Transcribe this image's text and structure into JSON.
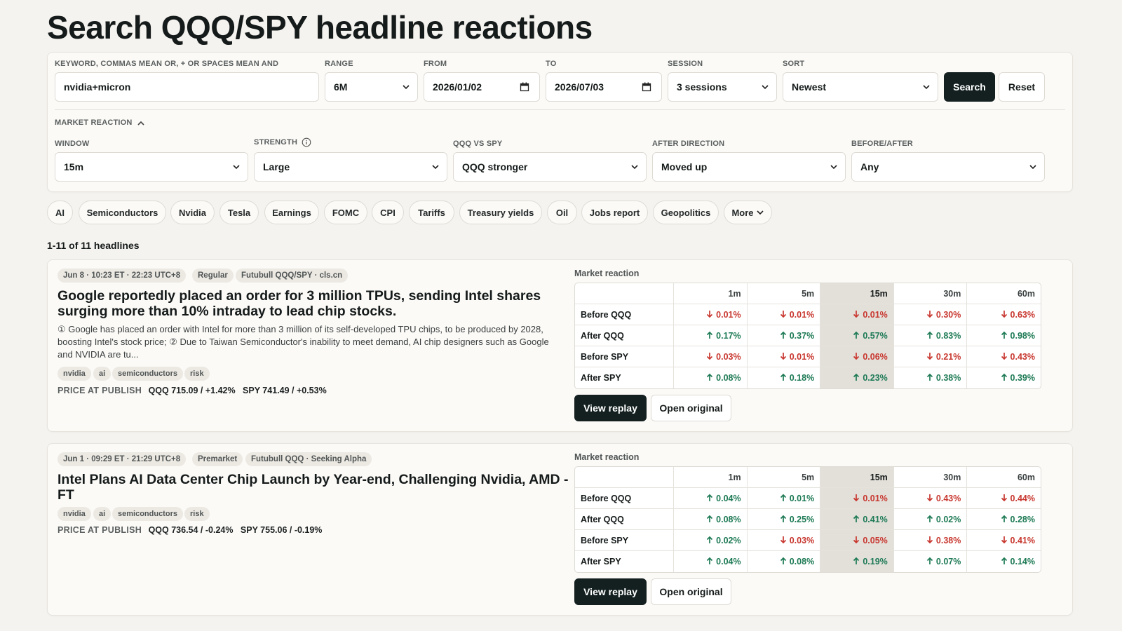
{
  "title": "Search QQQ/SPY headline reactions",
  "search": {
    "keyword_label": "Keyword, commas mean OR, + or spaces mean AND",
    "keyword_value": "nvidia+micron",
    "range_label": "Range",
    "range_value": "6M",
    "from_label": "From",
    "from_value": "2026/01/02",
    "to_label": "To",
    "to_value": "2026/07/03",
    "session_label": "Session",
    "session_value": "3 sessions",
    "sort_label": "Sort",
    "sort_value": "Newest",
    "search_button": "Search",
    "reset_button": "Reset"
  },
  "market_reaction": {
    "toggle_label": "Market reaction",
    "window_label": "Window",
    "window_value": "15m",
    "strength_label": "Strength",
    "strength_value": "Large",
    "qqq_vs_spy_label": "QQQ vs SPY",
    "qqq_vs_spy_value": "QQQ stronger",
    "after_direction_label": "After direction",
    "after_direction_value": "Moved up",
    "before_after_label": "Before/After",
    "before_after_value": "Any"
  },
  "chips": [
    "AI",
    "Semiconductors",
    "Nvidia",
    "Tesla",
    "Earnings",
    "FOMC",
    "CPI",
    "Tariffs",
    "Treasury yields",
    "Oil",
    "Jobs report",
    "Geopolitics"
  ],
  "chip_more": "More",
  "result_count": "1-11 of 11 headlines",
  "table_columns": [
    "",
    "1m",
    "5m",
    "15m",
    "30m",
    "60m"
  ],
  "results": [
    {
      "time": "Jun 8 · 10:23 ET · 22:23 UTC+8",
      "session": "Regular",
      "source": "Futubull QQQ/SPY · cls.cn",
      "headline": "Google reportedly placed an order for 3 million TPUs, sending Intel shares surging more than 10% intraday to lead chip stocks.",
      "summary": "① Google has placed an order with Intel for more than 3 million of its self-developed TPU chips, to be produced by 2028, boosting Intel's stock price; ② Due to Taiwan Semiconductor's inability to meet demand, AI chip designers such as Google and NVIDIA are tu...",
      "tags": [
        "nvidia",
        "ai",
        "semiconductors",
        "risk"
      ],
      "price_label": "PRICE AT PUBLISH",
      "price_qqq": "QQQ 715.09 / +1.42%",
      "price_spy": "SPY 741.49 / +0.53%",
      "reaction_label": "Market reaction",
      "rows": [
        {
          "label": "Before QQQ",
          "cells": [
            {
              "v": "0.01%",
              "d": "down"
            },
            {
              "v": "0.01%",
              "d": "down"
            },
            {
              "v": "0.01%",
              "d": "down"
            },
            {
              "v": "0.30%",
              "d": "down"
            },
            {
              "v": "0.63%",
              "d": "down"
            }
          ]
        },
        {
          "label": "After QQQ",
          "cells": [
            {
              "v": "0.17%",
              "d": "up"
            },
            {
              "v": "0.37%",
              "d": "up"
            },
            {
              "v": "0.57%",
              "d": "up"
            },
            {
              "v": "0.83%",
              "d": "up"
            },
            {
              "v": "0.98%",
              "d": "up"
            }
          ]
        },
        {
          "label": "Before SPY",
          "cells": [
            {
              "v": "0.03%",
              "d": "down"
            },
            {
              "v": "0.01%",
              "d": "down"
            },
            {
              "v": "0.06%",
              "d": "down"
            },
            {
              "v": "0.21%",
              "d": "down"
            },
            {
              "v": "0.43%",
              "d": "down"
            }
          ]
        },
        {
          "label": "After SPY",
          "cells": [
            {
              "v": "0.08%",
              "d": "up"
            },
            {
              "v": "0.18%",
              "d": "up"
            },
            {
              "v": "0.23%",
              "d": "up"
            },
            {
              "v": "0.38%",
              "d": "up"
            },
            {
              "v": "0.39%",
              "d": "up"
            }
          ]
        }
      ],
      "replay_button": "View replay",
      "original_button": "Open original"
    },
    {
      "time": "Jun 1 · 09:29 ET · 21:29 UTC+8",
      "session": "Premarket",
      "source": "Futubull QQQ · Seeking Alpha",
      "headline": "Intel Plans AI Data Center Chip Launch by Year-end, Challenging Nvidia, AMD - FT",
      "summary": "",
      "tags": [
        "nvidia",
        "ai",
        "semiconductors",
        "risk"
      ],
      "price_label": "PRICE AT PUBLISH",
      "price_qqq": "QQQ 736.54 / -0.24%",
      "price_spy": "SPY 755.06 / -0.19%",
      "reaction_label": "Market reaction",
      "rows": [
        {
          "label": "Before QQQ",
          "cells": [
            {
              "v": "0.04%",
              "d": "up"
            },
            {
              "v": "0.01%",
              "d": "up"
            },
            {
              "v": "0.01%",
              "d": "down"
            },
            {
              "v": "0.43%",
              "d": "down"
            },
            {
              "v": "0.44%",
              "d": "down"
            }
          ]
        },
        {
          "label": "After QQQ",
          "cells": [
            {
              "v": "0.08%",
              "d": "up"
            },
            {
              "v": "0.25%",
              "d": "up"
            },
            {
              "v": "0.41%",
              "d": "up"
            },
            {
              "v": "0.02%",
              "d": "up"
            },
            {
              "v": "0.28%",
              "d": "up"
            }
          ]
        },
        {
          "label": "Before SPY",
          "cells": [
            {
              "v": "0.02%",
              "d": "up"
            },
            {
              "v": "0.03%",
              "d": "down"
            },
            {
              "v": "0.05%",
              "d": "down"
            },
            {
              "v": "0.38%",
              "d": "down"
            },
            {
              "v": "0.41%",
              "d": "down"
            }
          ]
        },
        {
          "label": "After SPY",
          "cells": [
            {
              "v": "0.04%",
              "d": "up"
            },
            {
              "v": "0.08%",
              "d": "up"
            },
            {
              "v": "0.19%",
              "d": "up"
            },
            {
              "v": "0.07%",
              "d": "up"
            },
            {
              "v": "0.14%",
              "d": "up"
            }
          ]
        }
      ],
      "replay_button": "View replay",
      "original_button": "Open original"
    }
  ],
  "colors": {
    "accent_dark": "#142020",
    "up": "#1d7a55",
    "down": "#c8372f",
    "highlight_column": "#e3e0da"
  }
}
